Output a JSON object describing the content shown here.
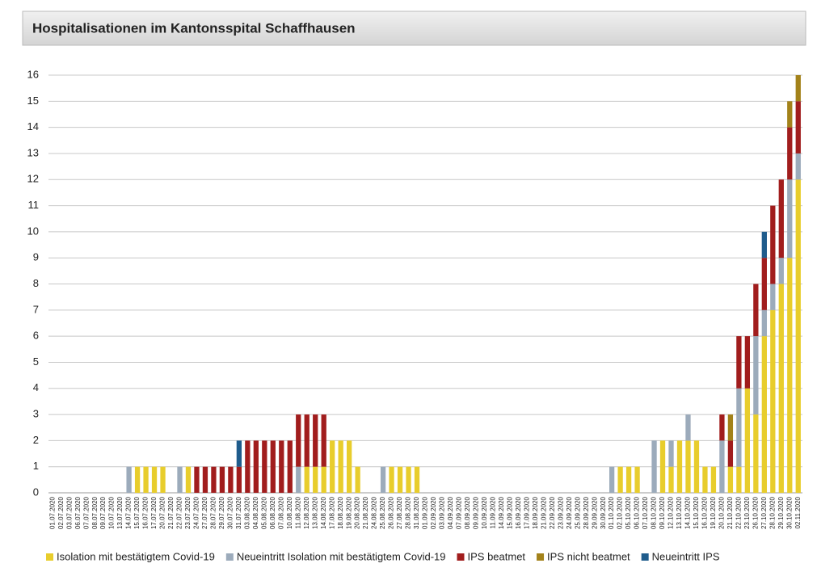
{
  "chart_data": {
    "type": "stacked_bar",
    "title": "Hospitalisationen im Kantonsspital Schaffhausen",
    "categories": [
      "01.07.2020",
      "02.07.2020",
      "03.07.2020",
      "06.07.2020",
      "07.07.2020",
      "08.07.2020",
      "09.07.2020",
      "10.07.2020",
      "13.07.2020",
      "14.07.2020",
      "15.07.2020",
      "16.07.2020",
      "17.07.2020",
      "20.07.2020",
      "21.07.2020",
      "22.07.2020",
      "23.07.2020",
      "24.07.2020",
      "27.07.2020",
      "28.07.2020",
      "29.07.2020",
      "30.07.2020",
      "31.07.2020",
      "03.08.2020",
      "04.08.2020",
      "05.08.2020",
      "06.08.2020",
      "07.08.2020",
      "10.08.2020",
      "11.08.2020",
      "12.08.2020",
      "13.08.2020",
      "14.08.2020",
      "17.08.2020",
      "18.08.2020",
      "19.08.2020",
      "20.08.2020",
      "21.08.2020",
      "24.08.2020",
      "25.08.2020",
      "26.08.2020",
      "27.08.2020",
      "28.08.2020",
      "31.08.2020",
      "01.09.2020",
      "02.09.2020",
      "03.09.2020",
      "04.09.2020",
      "07.09.2020",
      "08.09.2020",
      "09.09.2020",
      "10.09.2020",
      "11.09.2020",
      "14.09.2020",
      "15.09.2020",
      "16.09.2020",
      "17.09.2020",
      "18.09.2020",
      "21.09.2020",
      "22.09.2020",
      "23.09.2020",
      "24.09.2020",
      "25.09.2020",
      "28.09.2020",
      "29.09.2020",
      "30.09.2020",
      "01.10.2020",
      "02.10.2020",
      "05.10.2020",
      "06.10.2020",
      "07.10.2020",
      "08.10.2020",
      "09.10.2020",
      "12.10.2020",
      "13.10.2020",
      "14.10.2020",
      "15.10.2020",
      "16.10.2020",
      "19.10.2020",
      "20.10.2020",
      "21.10.2020",
      "22.10.2020",
      "23.10.2020",
      "26.10.2020",
      "27.10.2020",
      "28.10.2020",
      "29.10.2020",
      "30.10.2020",
      "02.11.2020"
    ],
    "series": [
      {
        "name": "Isolation mit bestätigtem Covid-19",
        "color": "#e8cd2c",
        "values": [
          0,
          0,
          0,
          0,
          0,
          0,
          0,
          0,
          0,
          0,
          1,
          1,
          1,
          1,
          0,
          0,
          1,
          0,
          0,
          0,
          0,
          0,
          0,
          0,
          0,
          0,
          0,
          0,
          0,
          0,
          1,
          1,
          1,
          2,
          2,
          2,
          1,
          0,
          0,
          0,
          1,
          1,
          1,
          1,
          0,
          0,
          0,
          0,
          0,
          0,
          0,
          0,
          0,
          0,
          0,
          0,
          0,
          0,
          0,
          0,
          0,
          0,
          0,
          0,
          0,
          0,
          0,
          1,
          1,
          1,
          0,
          0,
          2,
          1,
          2,
          2,
          2,
          1,
          1,
          0,
          1,
          1,
          4,
          3,
          6,
          7,
          8,
          9,
          12
        ]
      },
      {
        "name": "Neueintritt Isolation mit bestätigtem Covid-19",
        "color": "#9cabbb",
        "values": [
          0,
          0,
          0,
          0,
          0,
          0,
          0,
          0,
          0,
          1,
          0,
          0,
          0,
          0,
          0,
          1,
          0,
          0,
          0,
          0,
          0,
          0,
          0,
          0,
          0,
          0,
          0,
          0,
          0,
          1,
          0,
          0,
          0,
          0,
          0,
          0,
          0,
          0,
          0,
          1,
          0,
          0,
          0,
          0,
          0,
          0,
          0,
          0,
          0,
          0,
          0,
          0,
          0,
          0,
          0,
          0,
          0,
          0,
          0,
          0,
          0,
          0,
          0,
          0,
          0,
          0,
          1,
          0,
          0,
          0,
          0,
          2,
          0,
          1,
          0,
          1,
          0,
          0,
          0,
          2,
          0,
          3,
          0,
          3,
          1,
          1,
          1,
          3,
          1
        ]
      },
      {
        "name": "IPS beatmet",
        "color": "#a11d1d",
        "values": [
          0,
          0,
          0,
          0,
          0,
          0,
          0,
          0,
          0,
          0,
          0,
          0,
          0,
          0,
          0,
          0,
          0,
          1,
          1,
          1,
          1,
          1,
          1,
          2,
          2,
          2,
          2,
          2,
          2,
          2,
          2,
          2,
          2,
          0,
          0,
          0,
          0,
          0,
          0,
          0,
          0,
          0,
          0,
          0,
          0,
          0,
          0,
          0,
          0,
          0,
          0,
          0,
          0,
          0,
          0,
          0,
          0,
          0,
          0,
          0,
          0,
          0,
          0,
          0,
          0,
          0,
          0,
          0,
          0,
          0,
          0,
          0,
          0,
          0,
          0,
          0,
          0,
          0,
          0,
          1,
          1,
          2,
          2,
          2,
          2,
          3,
          3,
          2,
          2
        ]
      },
      {
        "name": "IPS nicht beatmet",
        "color": "#a3821a",
        "values": [
          0,
          0,
          0,
          0,
          0,
          0,
          0,
          0,
          0,
          0,
          0,
          0,
          0,
          0,
          0,
          0,
          0,
          0,
          0,
          0,
          0,
          0,
          0,
          0,
          0,
          0,
          0,
          0,
          0,
          0,
          0,
          0,
          0,
          0,
          0,
          0,
          0,
          0,
          0,
          0,
          0,
          0,
          0,
          0,
          0,
          0,
          0,
          0,
          0,
          0,
          0,
          0,
          0,
          0,
          0,
          0,
          0,
          0,
          0,
          0,
          0,
          0,
          0,
          0,
          0,
          0,
          0,
          0,
          0,
          0,
          0,
          0,
          0,
          0,
          0,
          0,
          0,
          0,
          0,
          0,
          1,
          0,
          0,
          0,
          0,
          0,
          0,
          1,
          1
        ]
      },
      {
        "name": "Neueintritt IPS",
        "color": "#1f5c8c",
        "values": [
          0,
          0,
          0,
          0,
          0,
          0,
          0,
          0,
          0,
          0,
          0,
          0,
          0,
          0,
          0,
          0,
          0,
          0,
          0,
          0,
          0,
          0,
          1,
          0,
          0,
          0,
          0,
          0,
          0,
          0,
          0,
          0,
          0,
          0,
          0,
          0,
          0,
          0,
          0,
          0,
          0,
          0,
          0,
          0,
          0,
          0,
          0,
          0,
          0,
          0,
          0,
          0,
          0,
          0,
          0,
          0,
          0,
          0,
          0,
          0,
          0,
          0,
          0,
          0,
          0,
          0,
          0,
          0,
          0,
          0,
          0,
          0,
          0,
          0,
          0,
          0,
          0,
          0,
          0,
          0,
          0,
          0,
          0,
          0,
          1,
          0,
          0,
          0,
          0
        ]
      }
    ],
    "ylim": [
      0,
      16
    ],
    "yticks": [
      0,
      1,
      2,
      3,
      4,
      5,
      6,
      7,
      8,
      9,
      10,
      11,
      12,
      13,
      14,
      15,
      16
    ],
    "grid": true,
    "legend": "bottom"
  }
}
